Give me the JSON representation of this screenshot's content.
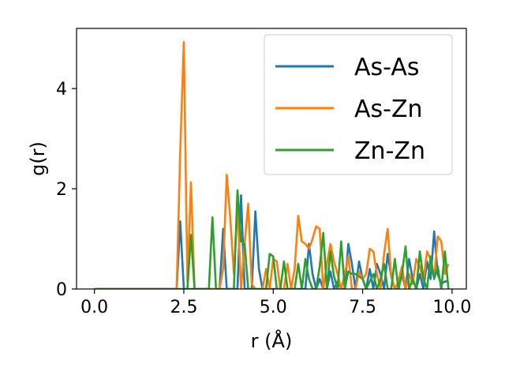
{
  "chart_data": {
    "type": "line",
    "title": "",
    "xlabel": "r (Å)",
    "ylabel": "g(r)",
    "xlim": [
      -0.5,
      10.4
    ],
    "ylim": [
      0,
      5.2
    ],
    "xticks": [
      0.0,
      2.5,
      5.0,
      7.5,
      10.0
    ],
    "xtick_labels": [
      "0.0",
      "2.5",
      "5.0",
      "7.5",
      "10.0"
    ],
    "yticks": [
      0,
      2,
      4
    ],
    "ytick_labels": [
      "0",
      "2",
      "4"
    ],
    "grid": false,
    "legend_position": "top-right",
    "series": [
      {
        "name": "As-As",
        "color": "#1f77b4",
        "x": [
          0.0,
          2.3,
          2.4,
          2.5,
          2.6,
          2.7,
          3.5,
          3.6,
          3.7,
          3.8,
          3.9,
          4.0,
          4.1,
          4.2,
          4.3,
          4.4,
          4.5,
          4.6,
          4.7,
          5.5,
          5.6,
          5.7,
          5.8,
          5.9,
          6.0,
          6.1,
          6.2,
          6.3,
          6.4,
          6.5,
          6.6,
          6.7,
          6.8,
          6.9,
          7.0,
          7.1,
          7.2,
          7.3,
          7.4,
          7.5,
          7.6,
          7.7,
          7.8,
          7.9,
          8.0,
          8.1,
          8.2,
          8.3,
          8.4,
          8.5,
          8.6,
          8.7,
          8.8,
          8.9,
          9.0,
          9.1,
          9.2,
          9.3,
          9.4,
          9.5,
          9.6,
          9.7,
          9.8,
          9.9
        ],
        "y": [
          0.0,
          0.0,
          1.35,
          0.0,
          0.0,
          0.0,
          0.0,
          1.2,
          0.0,
          0.0,
          0.0,
          0.0,
          1.87,
          0.0,
          0.0,
          0.0,
          1.55,
          0.4,
          0.0,
          0.0,
          0.0,
          0.0,
          0.0,
          0.0,
          0.9,
          0.3,
          0.0,
          0.2,
          0.0,
          0.0,
          0.35,
          0.0,
          0.15,
          0.0,
          0.0,
          0.9,
          0.5,
          0.0,
          0.55,
          0.2,
          0.0,
          0.4,
          0.0,
          0.5,
          0.3,
          0.0,
          0.7,
          0.25,
          0.0,
          0.0,
          0.3,
          0.0,
          0.6,
          0.2,
          0.0,
          0.3,
          0.0,
          0.55,
          0.2,
          1.15,
          0.3,
          0.1,
          0.15,
          0.15
        ]
      },
      {
        "name": "As-Zn",
        "color": "#ff7f0e",
        "x": [
          0.0,
          2.3,
          2.4,
          2.5,
          2.6,
          2.7,
          2.8,
          3.5,
          3.6,
          3.7,
          3.8,
          3.9,
          4.0,
          4.1,
          4.2,
          4.3,
          4.4,
          4.5,
          4.6,
          4.7,
          4.8,
          4.9,
          5.0,
          5.1,
          5.2,
          5.3,
          5.4,
          5.5,
          5.6,
          5.7,
          5.8,
          5.9,
          6.0,
          6.1,
          6.2,
          6.3,
          6.4,
          6.5,
          6.6,
          6.7,
          6.8,
          6.9,
          7.0,
          7.1,
          7.2,
          7.3,
          7.4,
          7.5,
          7.6,
          7.7,
          7.8,
          7.9,
          8.0,
          8.1,
          8.2,
          8.3,
          8.4,
          8.5,
          8.6,
          8.7,
          8.8,
          8.9,
          9.0,
          9.1,
          9.2,
          9.3,
          9.4,
          9.5,
          9.6,
          9.7,
          9.8,
          9.9
        ],
        "y": [
          0.0,
          0.0,
          2.75,
          4.93,
          0.15,
          2.13,
          0.0,
          0.0,
          0.4,
          2.28,
          1.4,
          0.3,
          1.65,
          0.0,
          0.9,
          1.7,
          0.1,
          0.0,
          0.0,
          0.0,
          0.4,
          0.0,
          0.6,
          0.55,
          0.0,
          0.0,
          0.5,
          0.0,
          0.4,
          1.46,
          0.95,
          0.9,
          0.8,
          1.0,
          1.25,
          1.2,
          0.0,
          0.5,
          0.9,
          0.55,
          0.3,
          0.0,
          0.3,
          0.65,
          0.0,
          0.0,
          0.35,
          0.2,
          0.3,
          0.8,
          0.75,
          0.3,
          0.0,
          0.7,
          1.2,
          0.25,
          0.0,
          0.15,
          0.45,
          0.0,
          0.3,
          0.1,
          0.6,
          0.45,
          0.15,
          0.75,
          0.6,
          0.2,
          1.05,
          0.95,
          0.3,
          0.5
        ]
      },
      {
        "name": "Zn-Zn",
        "color": "#2ca02c",
        "x": [
          0.0,
          2.6,
          2.7,
          2.8,
          3.2,
          3.3,
          3.4,
          3.9,
          4.0,
          4.1,
          4.2,
          4.3,
          4.4,
          4.8,
          4.9,
          5.0,
          5.1,
          5.2,
          5.3,
          5.4,
          5.5,
          5.6,
          5.7,
          5.8,
          5.9,
          6.0,
          6.1,
          6.2,
          6.3,
          6.4,
          6.5,
          6.6,
          6.7,
          6.8,
          6.9,
          7.0,
          7.1,
          7.2,
          7.3,
          7.4,
          7.5,
          7.6,
          7.7,
          7.8,
          7.9,
          8.0,
          8.1,
          8.2,
          8.3,
          8.4,
          8.5,
          8.6,
          8.7,
          8.8,
          8.9,
          9.0,
          9.1,
          9.2,
          9.3,
          9.4,
          9.5,
          9.6,
          9.7,
          9.8,
          9.9
        ],
        "y": [
          0.0,
          0.0,
          1.08,
          0.0,
          0.0,
          1.43,
          0.0,
          0.0,
          1.97,
          0.95,
          0.9,
          0.0,
          0.0,
          0.0,
          0.7,
          0.65,
          0.0,
          0.0,
          0.55,
          0.0,
          0.0,
          0.0,
          0.5,
          0.0,
          0.6,
          0.2,
          0.0,
          0.0,
          0.45,
          1.12,
          0.0,
          0.75,
          0.25,
          0.0,
          0.95,
          0.0,
          0.35,
          0.3,
          0.3,
          0.25,
          0.2,
          0.0,
          0.15,
          0.3,
          0.0,
          0.2,
          0.5,
          0.0,
          0.0,
          0.6,
          0.0,
          0.3,
          0.85,
          0.0,
          0.2,
          0.0,
          0.75,
          0.2,
          0.0,
          0.65,
          0.2,
          0.45,
          0.0,
          0.75,
          0.0
        ]
      }
    ]
  }
}
